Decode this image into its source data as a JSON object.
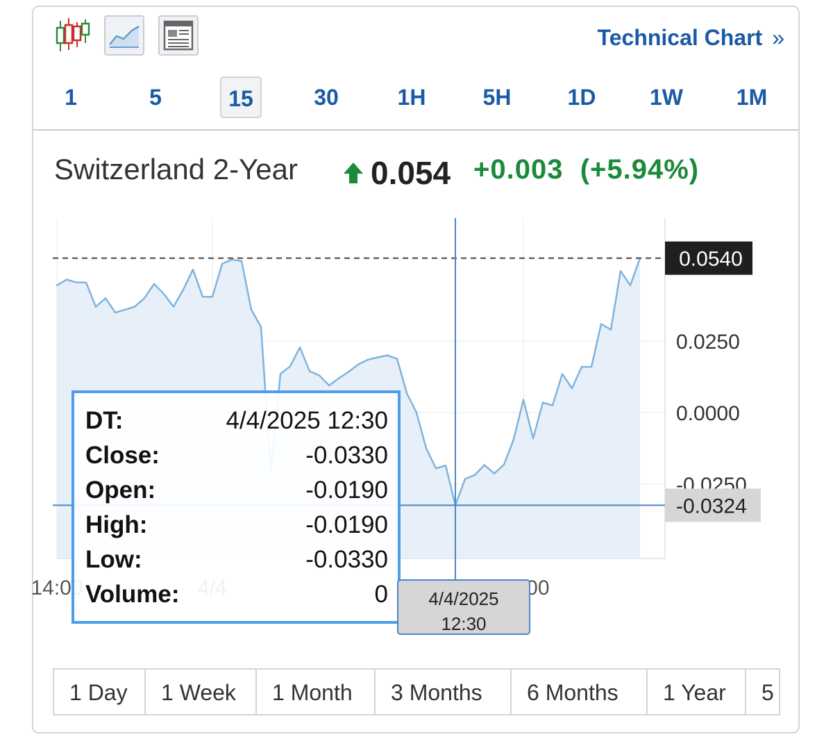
{
  "toolbar": {
    "chart_types": [
      {
        "name": "candlestick",
        "icon": "candlestick-icon"
      },
      {
        "name": "area",
        "icon": "area-chart-icon"
      },
      {
        "name": "overview",
        "icon": "overview-icon"
      }
    ],
    "technical_chart_label": "Technical Chart",
    "chevron": "»"
  },
  "intervals": [
    "1",
    "5",
    "15",
    "30",
    "1H",
    "5H",
    "1D",
    "1W",
    "1M"
  ],
  "active_interval": "15",
  "quote": {
    "name": "Switzerland 2-Year",
    "direction_icon": "up-arrow-icon",
    "price": "0.054",
    "change": "+0.003",
    "change_pct": "(+5.94%)",
    "up_color": "#1b8a3a"
  },
  "tooltip": {
    "rows": [
      {
        "label": "DT:",
        "value": "4/4/2025 12:30"
      },
      {
        "label": "Close:",
        "value": "-0.0330"
      },
      {
        "label": "Open:",
        "value": "-0.0190"
      },
      {
        "label": "High:",
        "value": "-0.0190"
      },
      {
        "label": "Low:",
        "value": "-0.0330"
      },
      {
        "label": "Volume:",
        "value": "0"
      }
    ]
  },
  "crosshair": {
    "date_line1": "4/4/2025",
    "date_line2": "12:30",
    "y_value": -0.0324,
    "y_label": "-0.0324"
  },
  "ranges": [
    "1 Day",
    "1 Week",
    "1 Month",
    "3 Months",
    "6 Months",
    "1 Year",
    "5"
  ],
  "chart_data": {
    "type": "area",
    "title": "",
    "xlabel": "",
    "ylabel": "",
    "ylim": [
      -0.051,
      0.068
    ],
    "y_ticks": [
      {
        "value": 0.025,
        "label": "0.0250"
      },
      {
        "value": 0.0,
        "label": "0.0000"
      },
      {
        "value": -0.025,
        "label": "-0.0250"
      }
    ],
    "x_ticks": [
      {
        "index": 0,
        "label": "14:00"
      },
      {
        "index": 16,
        "label": "4/4"
      },
      {
        "index": 48,
        "label": "16:00"
      }
    ],
    "last_price": {
      "value": 0.054,
      "label": "0.0540"
    },
    "grid": true,
    "series": [
      {
        "color": "#7fb3de",
        "values": [
          0.0445,
          0.0465,
          0.0455,
          0.0455,
          0.037,
          0.04,
          0.035,
          0.036,
          0.037,
          0.04,
          0.045,
          0.0415,
          0.037,
          0.043,
          0.05,
          0.0405,
          0.0405,
          0.052,
          0.0535,
          0.053,
          0.036,
          0.03,
          -0.0205,
          0.0135,
          0.0162,
          0.0228,
          0.0145,
          0.013,
          0.0095,
          0.012,
          0.0142,
          0.0168,
          0.0185,
          0.0193,
          0.02,
          0.0188,
          0.0068,
          0.0,
          -0.0125,
          -0.0195,
          -0.0185,
          -0.0324,
          -0.0232,
          -0.0218,
          -0.0183,
          -0.0213,
          -0.0182,
          -0.0093,
          0.0045,
          -0.009,
          0.0035,
          0.0025,
          0.0135,
          0.0085,
          0.016,
          0.016,
          0.031,
          0.029,
          0.0495,
          0.0445,
          0.054
        ]
      }
    ]
  }
}
